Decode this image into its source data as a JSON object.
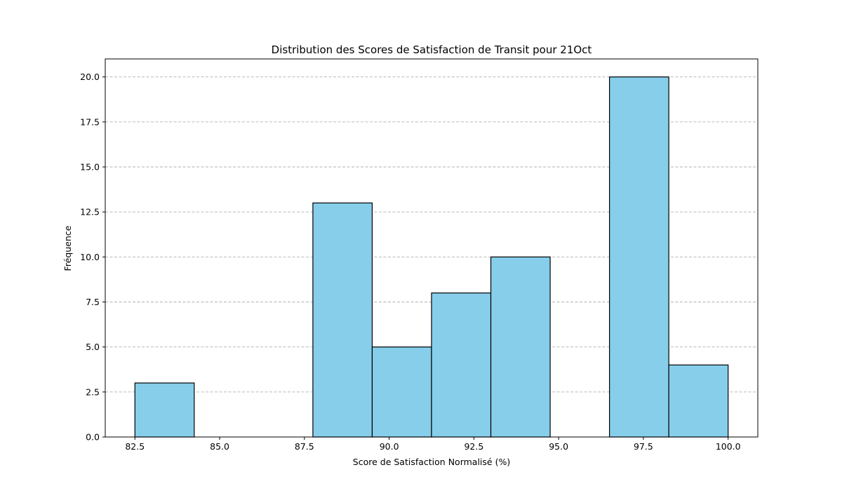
{
  "chart_data": {
    "type": "bar",
    "title": "Distribution des Scores de Satisfaction de Transit pour 21Oct",
    "xlabel": "Score de Satisfaction Normalisé (%)",
    "ylabel": "Fréquence",
    "bins": [
      {
        "start": 82.5,
        "end": 84.25,
        "count": 3
      },
      {
        "start": 84.25,
        "end": 86.0,
        "count": 0
      },
      {
        "start": 86.0,
        "end": 87.75,
        "count": 0
      },
      {
        "start": 87.75,
        "end": 89.5,
        "count": 13
      },
      {
        "start": 89.5,
        "end": 91.25,
        "count": 5
      },
      {
        "start": 91.25,
        "end": 93.0,
        "count": 8
      },
      {
        "start": 93.0,
        "end": 94.75,
        "count": 10
      },
      {
        "start": 94.75,
        "end": 96.5,
        "count": 0
      },
      {
        "start": 96.5,
        "end": 98.25,
        "count": 20
      },
      {
        "start": 98.25,
        "end": 100.0,
        "count": 4
      }
    ],
    "xlim": [
      81.625,
      100.875
    ],
    "ylim": [
      0,
      21
    ],
    "xticks": [
      82.5,
      85.0,
      87.5,
      90.0,
      92.5,
      95.0,
      97.5,
      100.0
    ],
    "xtick_labels": [
      "82.5",
      "85.0",
      "87.5",
      "90.0",
      "92.5",
      "95.0",
      "97.5",
      "100.0"
    ],
    "yticks": [
      0,
      2.5,
      5,
      7.5,
      10,
      12.5,
      15,
      17.5,
      20
    ],
    "ytick_labels": [
      "0.0",
      "2.5",
      "5.0",
      "7.5",
      "10.0",
      "12.5",
      "15.0",
      "17.5",
      "20.0"
    ],
    "grid": "y-dashed",
    "colors": {
      "bar_fill": "#87ceeb",
      "bar_edge": "#000000",
      "grid": "#b0b0b0"
    }
  }
}
